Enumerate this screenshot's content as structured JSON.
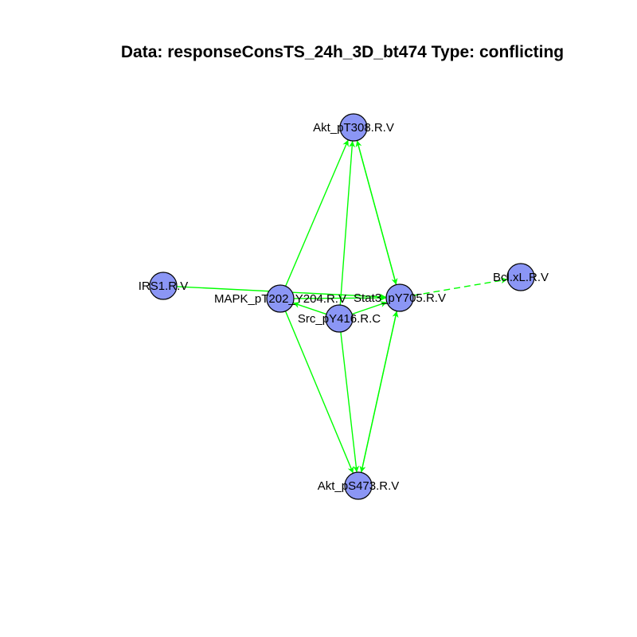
{
  "title": "Data: responseConsTS_24h_3D_bt474 Type: conflicting",
  "colors": {
    "node_fill": "#8b96f5",
    "node_stroke": "#000000",
    "edge": "#00ff00",
    "background": "#ffffff"
  },
  "nodes": [
    {
      "id": "akt_t308",
      "label": "Akt_pT308.R.V"
    },
    {
      "id": "irs1",
      "label": "IRS1.R.V"
    },
    {
      "id": "mapk",
      "label": "MAPK_pT202_Y204.R.V"
    },
    {
      "id": "stat3",
      "label": "Stat3_pY705.R.V"
    },
    {
      "id": "src",
      "label": "Src_pY416.R.C"
    },
    {
      "id": "bclxl",
      "label": "Bcl.xL.R.V"
    },
    {
      "id": "akt_s473",
      "label": "Akt_pS473.R.V"
    }
  ],
  "edges": [
    {
      "from": "mapk",
      "to": "akt_t308",
      "style": "solid"
    },
    {
      "from": "src",
      "to": "akt_t308",
      "style": "solid"
    },
    {
      "from": "akt_t308",
      "to": "stat3",
      "style": "solid"
    },
    {
      "from": "stat3",
      "to": "akt_t308",
      "style": "solid"
    },
    {
      "from": "irs1",
      "to": "stat3",
      "style": "solid"
    },
    {
      "from": "mapk",
      "to": "stat3",
      "style": "solid"
    },
    {
      "from": "src",
      "to": "mapk",
      "style": "solid"
    },
    {
      "from": "stat3",
      "to": "bclxl",
      "style": "dashed"
    },
    {
      "from": "src",
      "to": "stat3",
      "style": "solid"
    },
    {
      "from": "mapk",
      "to": "akt_s473",
      "style": "solid"
    },
    {
      "from": "src",
      "to": "akt_s473",
      "style": "solid"
    },
    {
      "from": "stat3",
      "to": "akt_s473",
      "style": "solid"
    },
    {
      "from": "akt_s473",
      "to": "stat3",
      "style": "solid"
    }
  ]
}
